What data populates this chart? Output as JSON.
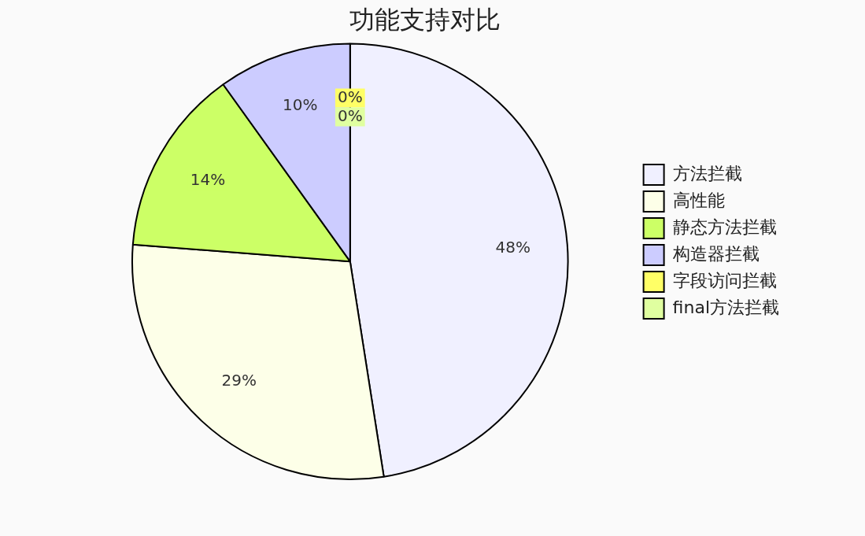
{
  "chart_data": {
    "type": "pie",
    "title": "功能支持对比",
    "categories": [
      "方法拦截",
      "高性能",
      "静态方法拦截",
      "构造器拦截",
      "字段访问拦截",
      "final方法拦截"
    ],
    "values": [
      48,
      29,
      14,
      10,
      0,
      0
    ],
    "colors": [
      "#f0f0ff",
      "#fdffe8",
      "#ccff66",
      "#ccccff",
      "#ffff66",
      "#e0ffa0"
    ],
    "value_labels": [
      "48%",
      "29%",
      "14%",
      "10%",
      "0%",
      "0%"
    ],
    "legend": "right"
  }
}
